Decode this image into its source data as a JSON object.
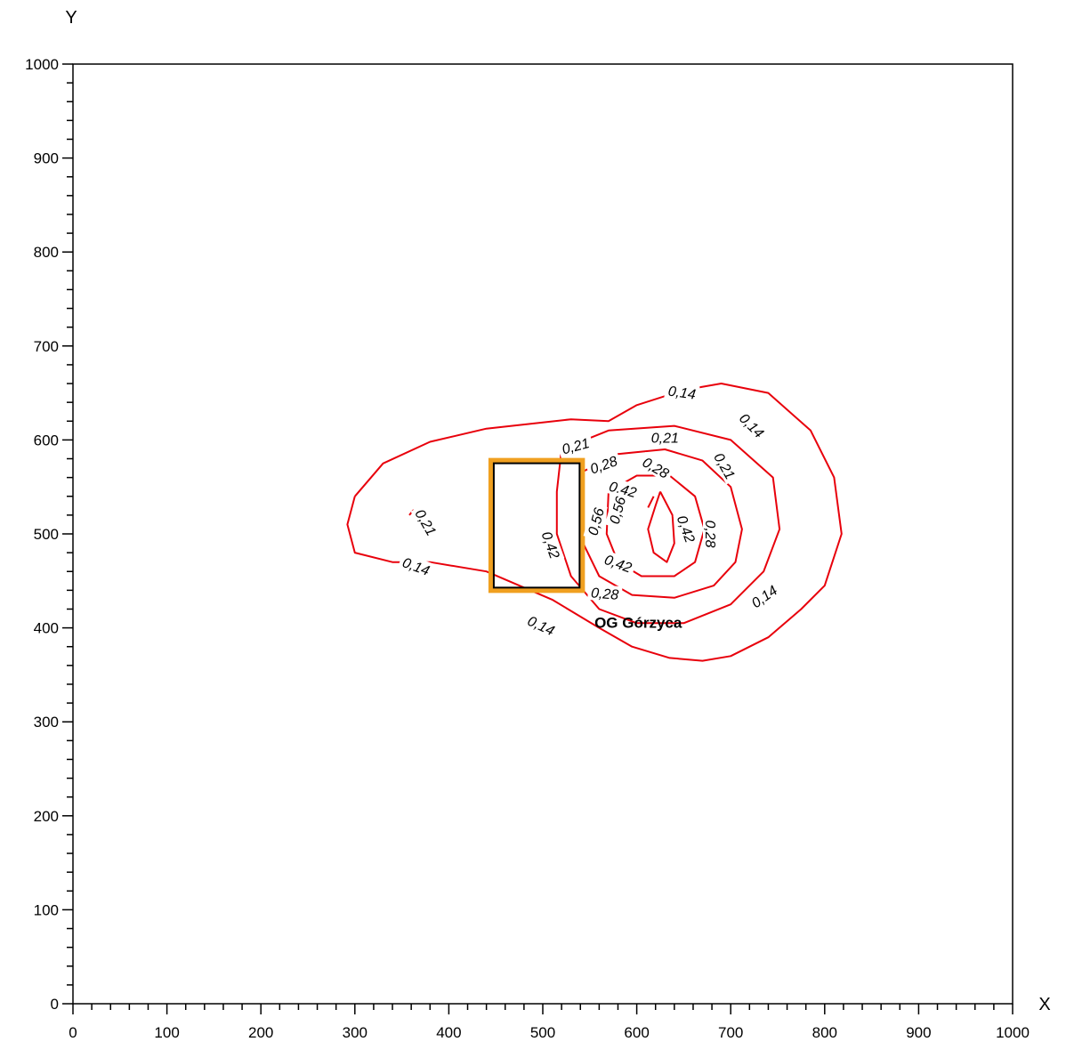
{
  "chart_data": {
    "type": "contour",
    "xlabel": "X",
    "ylabel": "Y",
    "xlim": [
      0,
      1000
    ],
    "ylim": [
      0,
      1000
    ],
    "xticks": [
      "0",
      "100",
      "200",
      "300",
      "400",
      "500",
      "600",
      "700",
      "800",
      "900",
      "1000"
    ],
    "yticks": [
      "0",
      "100",
      "200",
      "300",
      "400",
      "500",
      "600",
      "700",
      "800",
      "900",
      "1000"
    ],
    "minor_ticks_per_major": 5,
    "contour_color": "#e8000b",
    "contours": [
      {
        "level": "0,14",
        "path": [
          [
            300,
            540
          ],
          [
            330,
            575
          ],
          [
            380,
            598
          ],
          [
            440,
            612
          ],
          [
            530,
            622
          ],
          [
            570,
            620
          ],
          [
            600,
            637
          ],
          [
            650,
            653
          ],
          [
            690,
            660
          ],
          [
            740,
            650
          ],
          [
            785,
            610
          ],
          [
            810,
            560
          ],
          [
            818,
            500
          ],
          [
            800,
            445
          ],
          [
            775,
            420
          ],
          [
            740,
            390
          ],
          [
            700,
            370
          ],
          [
            670,
            365
          ],
          [
            635,
            368
          ],
          [
            595,
            380
          ],
          [
            560,
            400
          ],
          [
            510,
            430
          ],
          [
            440,
            460
          ],
          [
            380,
            470
          ],
          [
            340,
            470
          ],
          [
            300,
            480
          ],
          [
            292,
            510
          ],
          [
            300,
            540
          ]
        ]
      },
      {
        "level": "0,21",
        "path": [
          [
            520,
            590
          ],
          [
            570,
            610
          ],
          [
            640,
            615
          ],
          [
            700,
            600
          ],
          [
            745,
            560
          ],
          [
            752,
            505
          ],
          [
            735,
            460
          ],
          [
            700,
            425
          ],
          [
            650,
            405
          ],
          [
            600,
            405
          ],
          [
            560,
            420
          ],
          [
            530,
            455
          ],
          [
            515,
            500
          ],
          [
            515,
            545
          ],
          [
            520,
            590
          ]
        ]
      },
      {
        "level": "0,21",
        "path": [
          [
            358,
            520
          ],
          [
            362,
            525
          ],
          [
            367,
            520
          ]
        ]
      },
      {
        "level": "0,28",
        "path": [
          [
            540,
            565
          ],
          [
            580,
            585
          ],
          [
            630,
            590
          ],
          [
            670,
            578
          ],
          [
            700,
            550
          ],
          [
            712,
            505
          ],
          [
            705,
            470
          ],
          [
            682,
            445
          ],
          [
            640,
            432
          ],
          [
            595,
            435
          ],
          [
            560,
            455
          ],
          [
            543,
            490
          ],
          [
            540,
            530
          ],
          [
            540,
            565
          ]
        ]
      },
      {
        "level": "0,42",
        "path": [
          [
            570,
            545
          ],
          [
            600,
            562
          ],
          [
            635,
            562
          ],
          [
            662,
            540
          ],
          [
            672,
            505
          ],
          [
            662,
            470
          ],
          [
            640,
            455
          ],
          [
            605,
            455
          ],
          [
            580,
            470
          ],
          [
            568,
            500
          ],
          [
            570,
            545
          ]
        ]
      },
      {
        "level": "0,56",
        "path": [
          [
            625,
            545
          ],
          [
            620,
            530
          ],
          [
            612,
            505
          ],
          [
            618,
            480
          ],
          [
            632,
            470
          ],
          [
            640,
            490
          ],
          [
            638,
            520
          ],
          [
            625,
            545
          ]
        ]
      },
      {
        "level": "0,56",
        "path": [
          [
            618,
            540
          ],
          [
            612,
            528
          ]
        ]
      }
    ],
    "contour_labels": [
      {
        "text": "0,14",
        "x": 648,
        "y": 650,
        "angle": 8
      },
      {
        "text": "0,14",
        "x": 722,
        "y": 615,
        "angle": 45
      },
      {
        "text": "0,14",
        "x": 736,
        "y": 433,
        "angle": -35
      },
      {
        "text": "0,14",
        "x": 365,
        "y": 465,
        "angle": 20
      },
      {
        "text": "0,14",
        "x": 498,
        "y": 402,
        "angle": 25
      },
      {
        "text": "0,21",
        "x": 535,
        "y": 593,
        "angle": -15
      },
      {
        "text": "0,21",
        "x": 630,
        "y": 602,
        "angle": 0
      },
      {
        "text": "0,21",
        "x": 693,
        "y": 572,
        "angle": 60
      },
      {
        "text": "0,21",
        "x": 375,
        "y": 512,
        "angle": 60
      },
      {
        "text": "0,28",
        "x": 565,
        "y": 573,
        "angle": -20
      },
      {
        "text": "0,28",
        "x": 620,
        "y": 570,
        "angle": 30
      },
      {
        "text": "0,28",
        "x": 678,
        "y": 500,
        "angle": 90
      },
      {
        "text": "0,28",
        "x": 566,
        "y": 436,
        "angle": 5
      },
      {
        "text": "0,42",
        "x": 585,
        "y": 547,
        "angle": 15
      },
      {
        "text": "0,42",
        "x": 652,
        "y": 505,
        "angle": 70
      },
      {
        "text": "0,42",
        "x": 508,
        "y": 488,
        "angle": 70
      },
      {
        "text": "0,42",
        "x": 580,
        "y": 468,
        "angle": 20
      },
      {
        "text": "0,56",
        "x": 580,
        "y": 525,
        "angle": -75
      },
      {
        "text": "0,56",
        "x": 557,
        "y": 513,
        "angle": -75
      }
    ],
    "areas": [
      {
        "label": "OG Górzyca",
        "outline_color": "#f0a020",
        "border_color": "#000000",
        "x0": 445,
        "x1": 542,
        "y0": 440,
        "y1": 578,
        "label_x": 555,
        "label_y": 400
      }
    ]
  }
}
